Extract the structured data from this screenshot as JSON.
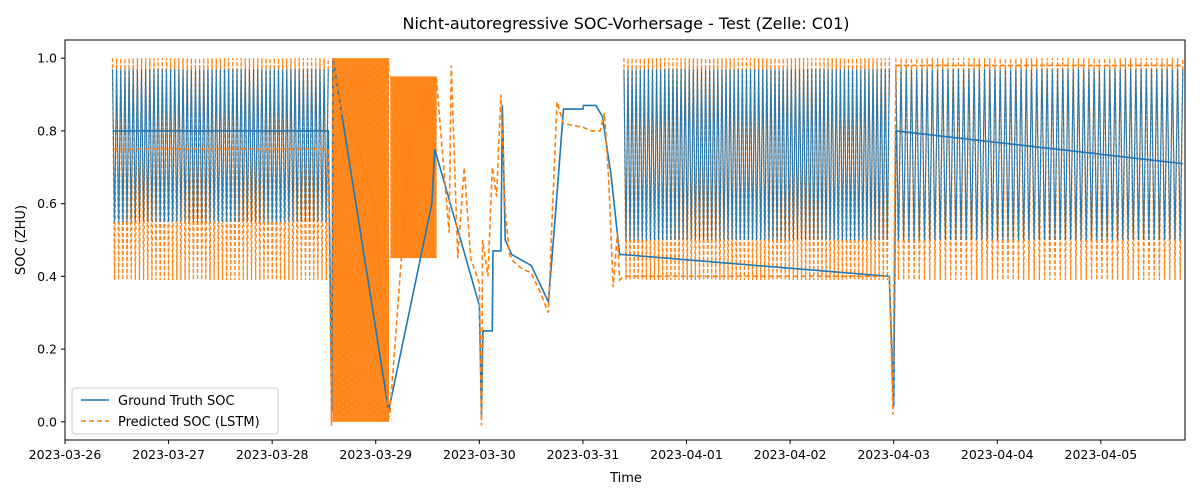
{
  "chart_data": {
    "type": "line",
    "title": "Nicht-autoregressive SOC-Vorhersage - Test (Zelle: C01)",
    "xlabel": "Time",
    "ylabel": "SOC (ZHU)",
    "xlim": [
      "2023-03-26T00:00",
      "2023-04-05T19:30"
    ],
    "ylim": [
      -0.05,
      1.05
    ],
    "grid": false,
    "legend_position": "lower-left",
    "x_ticks": [
      "2023-03-26",
      "2023-03-27",
      "2023-03-28",
      "2023-03-29",
      "2023-03-30",
      "2023-03-31",
      "2023-04-01",
      "2023-04-02",
      "2023-04-03",
      "2023-04-04",
      "2023-04-05"
    ],
    "y_ticks": [
      "0.0",
      "0.2",
      "0.4",
      "0.6",
      "0.8",
      "1.0"
    ],
    "series": [
      {
        "name": "Ground Truth SOC",
        "color": "#1f77b4",
        "style": "solid",
        "x": [
          "2023-03-26T11:00",
          "2023-03-28T13:00",
          "2023-03-28T13:50",
          "2023-03-28T14:05",
          "2023-03-29T03:00",
          "2023-03-29T03:20",
          "2023-03-29T13:00",
          "2023-03-29T13:40",
          "2023-03-30T00:00",
          "2023-03-30T00:30",
          "2023-03-30T00:50",
          "2023-03-30T03:00",
          "2023-03-30T03:10",
          "2023-03-30T05:00",
          "2023-03-30T05:20",
          "2023-03-30T06:00",
          "2023-03-30T07:30",
          "2023-03-30T12:00",
          "2023-03-30T16:00",
          "2023-03-30T17:30",
          "2023-03-30T19:30",
          "2023-03-30T20:00",
          "2023-03-31T00:00",
          "2023-03-31T00:10",
          "2023-03-31T03:00",
          "2023-03-31T04:30",
          "2023-03-31T06:30",
          "2023-03-31T08:30",
          "2023-03-31T09:15",
          "2023-04-02T23:00",
          "2023-04-03T00:00",
          "2023-04-03T00:30",
          "2023-04-05T19:00"
        ],
        "values": [
          0.8,
          0.8,
          0.03,
          1.0,
          0.03,
          0.05,
          0.6,
          0.75,
          0.32,
          0.02,
          0.25,
          0.25,
          0.47,
          0.47,
          0.87,
          0.5,
          0.46,
          0.43,
          0.33,
          0.55,
          0.86,
          0.86,
          0.86,
          0.87,
          0.87,
          0.84,
          0.68,
          0.46,
          0.46,
          0.4,
          0.04,
          0.8,
          0.71
        ]
      },
      {
        "name": "Predicted SOC (LSTM)",
        "color": "#ff7f0e",
        "style": "dashed",
        "x": [
          "2023-03-26T11:00",
          "2023-03-28T13:00",
          "2023-03-28T13:45",
          "2023-03-28T14:05",
          "2023-03-28T14:30",
          "2023-03-28T16:00",
          "2023-03-28T20:00",
          "2023-03-29T00:00",
          "2023-03-29T03:00",
          "2023-03-29T03:15",
          "2023-03-29T08:00",
          "2023-03-29T14:00",
          "2023-03-29T17:00",
          "2023-03-29T17:30",
          "2023-03-29T19:00",
          "2023-03-29T20:30",
          "2023-03-29T22:00",
          "2023-03-30T00:00",
          "2023-03-30T00:30",
          "2023-03-30T00:45",
          "2023-03-30T02:00",
          "2023-03-30T03:00",
          "2023-03-30T04:00",
          "2023-03-30T05:00",
          "2023-03-30T06:00",
          "2023-03-30T07:00",
          "2023-03-30T08:00",
          "2023-03-30T09:00",
          "2023-03-30T10:00",
          "2023-03-30T12:00",
          "2023-03-30T14:00",
          "2023-03-30T16:00",
          "2023-03-30T17:00",
          "2023-03-30T18:00",
          "2023-03-30T19:30",
          "2023-03-31T00:00",
          "2023-03-31T02:00",
          "2023-03-31T04:00",
          "2023-03-31T05:00",
          "2023-03-31T06:00",
          "2023-03-31T07:00",
          "2023-03-31T08:00",
          "2023-03-31T08:30",
          "2023-03-31T09:30",
          "2023-04-02T23:00",
          "2023-04-02T23:50",
          "2023-04-03T00:30",
          "2023-04-05T19:00"
        ],
        "values": [
          0.75,
          0.75,
          -0.01,
          1.0,
          0.97,
          0.85,
          0.75,
          0.58,
          0.01,
          0.02,
          0.78,
          0.95,
          0.52,
          0.98,
          0.45,
          0.7,
          0.45,
          0.38,
          -0.01,
          0.5,
          0.4,
          0.7,
          0.62,
          0.9,
          0.58,
          0.46,
          0.44,
          0.43,
          0.42,
          0.41,
          0.36,
          0.3,
          0.6,
          0.88,
          0.82,
          0.81,
          0.8,
          0.8,
          0.85,
          0.66,
          0.37,
          0.52,
          0.39,
          0.4,
          0.4,
          0.02,
          0.98,
          0.98
        ]
      }
    ],
    "oscillation_bands": [
      {
        "series": 1,
        "start": "2023-03-26T11:00",
        "end": "2023-03-28T13:00",
        "min": 0.39,
        "max": 1.0,
        "cycles": 52
      },
      {
        "series": 0,
        "start": "2023-03-26T11:00",
        "end": "2023-03-28T13:00",
        "min": 0.55,
        "max": 0.97,
        "cycles": 52
      },
      {
        "series": 1,
        "start": "2023-03-28T14:05",
        "end": "2023-03-29T03:00",
        "min": 0.0,
        "max": 1.0,
        "cycles": 95
      },
      {
        "series": 1,
        "start": "2023-03-29T03:30",
        "end": "2023-03-29T14:00",
        "min": 0.45,
        "max": 0.95,
        "cycles": 110
      },
      {
        "series": 1,
        "start": "2023-03-31T09:30",
        "end": "2023-04-02T23:00",
        "min": 0.39,
        "max": 1.0,
        "cycles": 65
      },
      {
        "series": 0,
        "start": "2023-03-31T09:30",
        "end": "2023-04-02T23:00",
        "min": 0.5,
        "max": 0.97,
        "cycles": 65
      },
      {
        "series": 1,
        "start": "2023-04-03T00:30",
        "end": "2023-04-05T19:00",
        "min": 0.39,
        "max": 1.0,
        "cycles": 55
      },
      {
        "series": 0,
        "start": "2023-04-03T00:30",
        "end": "2023-04-05T19:00",
        "min": 0.5,
        "max": 0.97,
        "cycles": 55
      }
    ]
  }
}
